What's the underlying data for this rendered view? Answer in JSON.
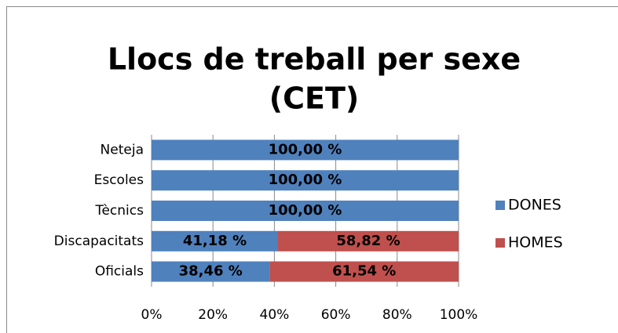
{
  "chart_data": {
    "type": "bar",
    "orientation": "horizontal",
    "stacked": true,
    "title": [
      "Llocs de treball per sexe",
      "(CET)"
    ],
    "categories": [
      "Neteja",
      "Escoles",
      "Tècnics",
      "Discapacitats",
      "Oficials"
    ],
    "series": [
      {
        "name": "DONES",
        "color": "#4f81bd",
        "values": [
          100,
          100,
          100,
          41.18,
          38.46
        ],
        "value_labels": [
          "100,00 %",
          "100,00 %",
          "100,00 %",
          "41,18 %",
          "38,46 %"
        ]
      },
      {
        "name": "HOMES",
        "color": "#c0504d",
        "values": [
          0,
          0,
          0,
          58.82,
          61.54
        ],
        "value_labels": [
          null,
          null,
          null,
          "58,82 %",
          "61,54 %"
        ]
      }
    ],
    "xlim": [
      0,
      100
    ],
    "xticks": [
      {
        "value": 0,
        "label": "0%"
      },
      {
        "value": 20,
        "label": "20%"
      },
      {
        "value": 40,
        "label": "40%"
      },
      {
        "value": 60,
        "label": "60%"
      },
      {
        "value": 80,
        "label": "80%"
      },
      {
        "value": 100,
        "label": "100%"
      }
    ],
    "grid": true,
    "legend": "right"
  }
}
